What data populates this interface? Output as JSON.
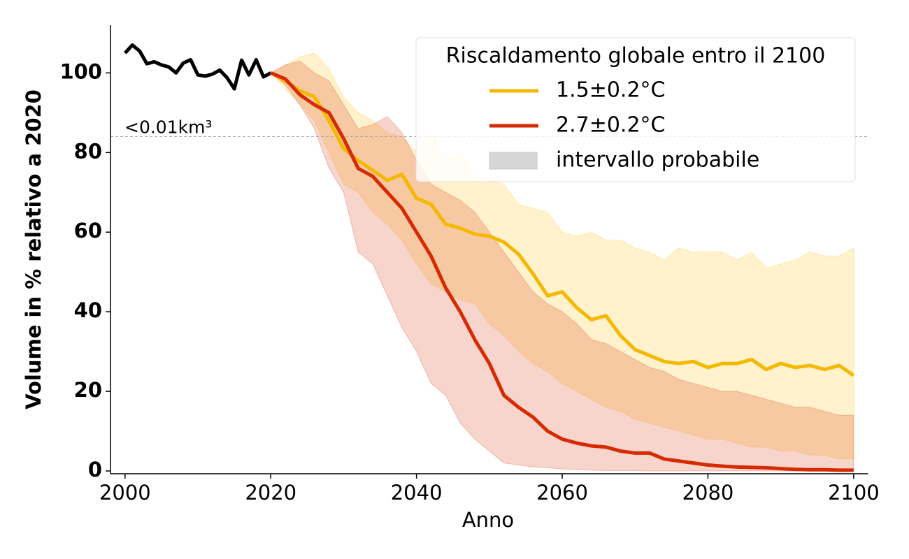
{
  "chart_data": {
    "type": "line",
    "xlabel": "Anno",
    "ylabel": "Volume in % relativo a 2020",
    "xlim": [
      1998,
      2102
    ],
    "ylim": [
      -0.7,
      112
    ],
    "xticks": [
      2000,
      2020,
      2040,
      2060,
      2080,
      2100
    ],
    "yticks": [
      0,
      20,
      40,
      60,
      80,
      100
    ],
    "hline": {
      "value": 84,
      "label": "<0.01km³",
      "color": "#aaaaaa"
    },
    "legend_title": "Riscaldamento globale entro il 2100",
    "legend_corner": "upper right",
    "band_label": "intervallo probabile",
    "band_legend_color": "#d6d6d6",
    "history": {
      "color": "#000000",
      "x": [
        2000,
        2001,
        2002,
        2003,
        2004,
        2005,
        2006,
        2007,
        2008,
        2009,
        2010,
        2011,
        2012,
        2013,
        2014,
        2015,
        2016,
        2017,
        2018,
        2019,
        2020
      ],
      "values": [
        105,
        107,
        105.5,
        102.3,
        102.8,
        102,
        101.5,
        100,
        102.5,
        103.3,
        99.5,
        99.2,
        99.7,
        100.7,
        98.8,
        96,
        103.2,
        99.5,
        103.3,
        99,
        100
      ]
    },
    "series": [
      {
        "name": "1.5±0.2°C",
        "color": "#f5b800",
        "band_color": "#ffc000",
        "x": [
          2020,
          2022,
          2024,
          2026,
          2028,
          2030,
          2032,
          2034,
          2036,
          2038,
          2040,
          2042,
          2044,
          2046,
          2048,
          2050,
          2052,
          2054,
          2056,
          2058,
          2060,
          2062,
          2064,
          2066,
          2068,
          2070,
          2072,
          2074,
          2076,
          2078,
          2080,
          2082,
          2084,
          2086,
          2088,
          2090,
          2092,
          2094,
          2096,
          2098,
          2100
        ],
        "values": [
          100,
          98,
          95.5,
          94,
          88,
          81,
          78,
          75.5,
          73,
          74.5,
          68.5,
          67,
          62,
          61,
          59.5,
          59,
          57.5,
          54.5,
          49.5,
          44,
          45,
          41,
          38,
          39,
          34,
          30.5,
          29,
          27.5,
          27,
          27.5,
          26,
          27,
          27,
          28,
          25.5,
          27,
          26,
          26.5,
          25.5,
          26.5,
          24
        ],
        "upper": [
          100,
          102,
          104,
          105,
          101,
          94,
          90,
          88,
          85,
          84,
          80,
          85,
          78,
          80,
          74,
          73,
          72,
          67,
          66,
          65,
          60,
          59,
          60,
          58,
          58,
          56,
          55,
          53,
          56,
          55,
          55,
          55,
          53,
          55,
          51,
          52,
          53,
          55,
          54,
          54,
          56
        ],
        "lower": [
          100,
          96,
          92,
          88,
          80,
          72,
          70,
          65,
          62,
          58,
          52,
          47,
          45,
          43,
          42,
          37,
          34,
          30,
          27,
          25,
          22,
          20,
          18,
          16,
          15,
          13,
          12,
          11,
          10,
          9,
          8,
          8,
          7,
          6,
          6,
          5,
          5,
          4,
          4,
          3,
          3
        ]
      },
      {
        "name": "2.7±0.2°C",
        "color": "#d62a00",
        "band_color": "#d62a00",
        "x": [
          2020,
          2022,
          2024,
          2026,
          2028,
          2030,
          2032,
          2034,
          2036,
          2038,
          2040,
          2042,
          2044,
          2046,
          2048,
          2050,
          2052,
          2054,
          2056,
          2058,
          2060,
          2062,
          2064,
          2066,
          2068,
          2070,
          2072,
          2074,
          2076,
          2078,
          2080,
          2082,
          2084,
          2086,
          2088,
          2090,
          2092,
          2094,
          2096,
          2098,
          2100
        ],
        "values": [
          100,
          98.5,
          94.5,
          92,
          90,
          83.5,
          76,
          74,
          70,
          66,
          60,
          54,
          46,
          40,
          33,
          27,
          19,
          16,
          13.5,
          10,
          8,
          7,
          6.3,
          6,
          5,
          4.5,
          4.5,
          3,
          2.5,
          2,
          1.5,
          1.2,
          1,
          0.9,
          0.8,
          0.6,
          0.4,
          0.3,
          0.3,
          0.2,
          0.2
        ],
        "upper": [
          100,
          102,
          103,
          100,
          98,
          92,
          86,
          87,
          89,
          85,
          78,
          72,
          70,
          68,
          65,
          60,
          55,
          50,
          45,
          42,
          40,
          37,
          33,
          32,
          30,
          28,
          26,
          25,
          23,
          22,
          21,
          20,
          20,
          19,
          18,
          17,
          16,
          16,
          15,
          14,
          14
        ],
        "lower": [
          100,
          97,
          92,
          86,
          76,
          70,
          55,
          52,
          44,
          36,
          30,
          22,
          19,
          12,
          8,
          5,
          2,
          1.5,
          1,
          0.8,
          0.5,
          0.3,
          0.2,
          0.1,
          0.1,
          0.1,
          0,
          0,
          0,
          0,
          0,
          0,
          0,
          0,
          0,
          0,
          0,
          0,
          0,
          0,
          0
        ]
      }
    ]
  }
}
